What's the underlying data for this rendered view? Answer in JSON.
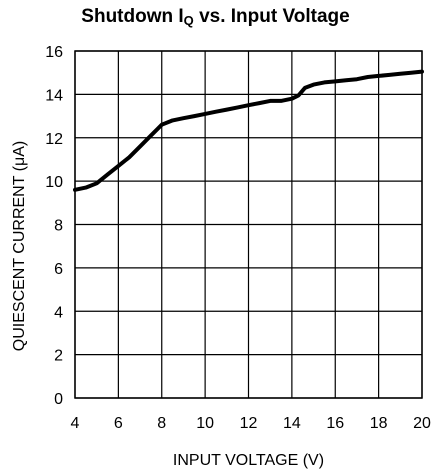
{
  "chart_data": {
    "type": "line",
    "title": {
      "text": "Shutdown I",
      "subscript": "Q",
      "suffix": " vs. Input Voltage"
    },
    "xlabel": "INPUT VOLTAGE (V)",
    "ylabel": "QUIESCENT CURRENT (μA)",
    "xlim": [
      4,
      20
    ],
    "ylim": [
      0,
      16
    ],
    "xticks": [
      4,
      6,
      8,
      10,
      12,
      14,
      16,
      18,
      20
    ],
    "yticks": [
      0,
      2,
      4,
      6,
      8,
      10,
      12,
      14,
      16
    ],
    "grid": true,
    "line_color": "#000000",
    "series": [
      {
        "x": [
          4.0,
          4.5,
          5.0,
          5.5,
          6.0,
          6.5,
          7.0,
          7.5,
          8.0,
          8.5,
          9.0,
          9.5,
          10.0,
          10.5,
          11.0,
          11.5,
          12.0,
          12.5,
          13.0,
          13.5,
          14.0,
          14.3,
          14.6,
          15.0,
          15.5,
          16.0,
          16.5,
          17.0,
          17.5,
          18.0,
          18.5,
          19.0,
          19.5,
          20.0
        ],
        "y": [
          9.6,
          9.7,
          9.9,
          10.3,
          10.7,
          11.1,
          11.6,
          12.1,
          12.6,
          12.8,
          12.9,
          13.0,
          13.1,
          13.2,
          13.3,
          13.4,
          13.5,
          13.6,
          13.7,
          13.7,
          13.8,
          13.95,
          14.3,
          14.45,
          14.55,
          14.6,
          14.65,
          14.7,
          14.8,
          14.85,
          14.9,
          14.95,
          15.0,
          15.05
        ]
      }
    ]
  }
}
